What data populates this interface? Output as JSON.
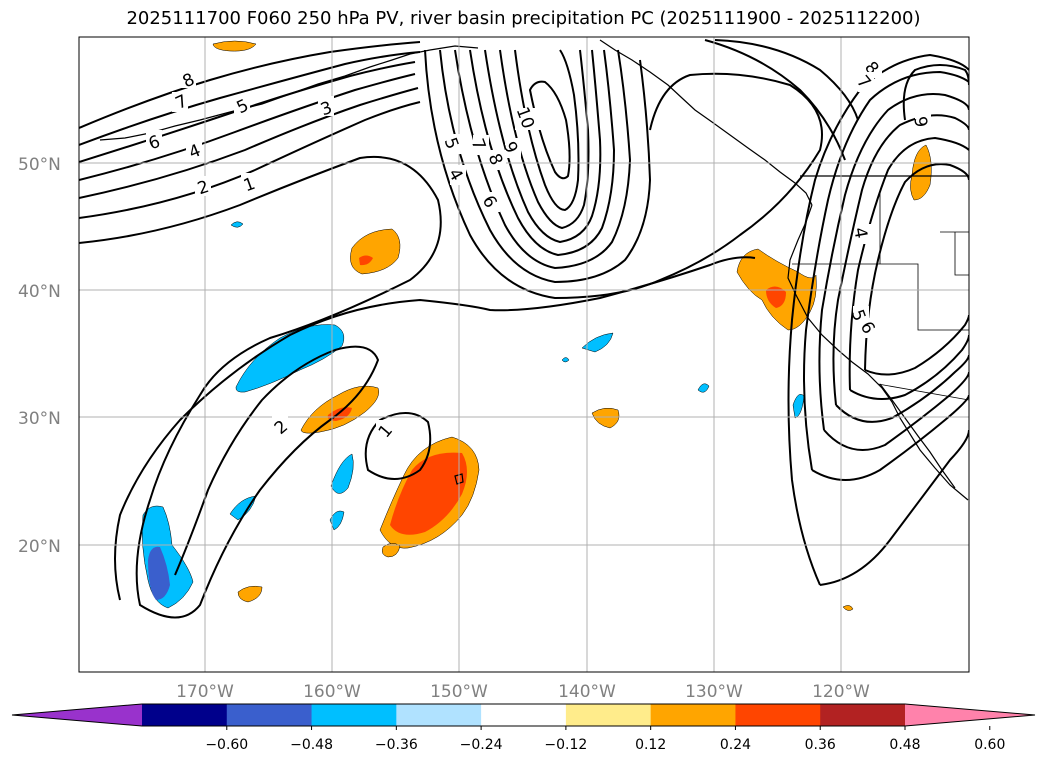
{
  "title": "2025111700 F060 250 hPa PV, river basin precipitation PC (2025111900 - 2025112200)",
  "latitude_labels": [
    "50°N",
    "40°N",
    "30°N",
    "20°N"
  ],
  "longitude_labels": [
    "170°W",
    "160°W",
    "150°W",
    "140°W",
    "130°W",
    "120°W"
  ],
  "contour_labels": [
    "8",
    "7",
    "6",
    "5",
    "4",
    "3",
    "2",
    "1",
    "10",
    "9",
    "8",
    "7",
    "6",
    "5",
    "4",
    "2",
    "1",
    "8",
    "7",
    "9",
    "4",
    "5",
    "6"
  ],
  "colorbar": {
    "colors": [
      "#9932cc",
      "#00008b",
      "#3a5fcd",
      "#00bfff",
      "#b0e2ff",
      "#ffffff",
      "#ffec8b",
      "#ffa500",
      "#ff4500",
      "#b22222",
      "#ff82ab"
    ],
    "tick_labels": [
      "−0.60",
      "−0.48",
      "−0.36",
      "−0.24",
      "−0.12",
      "0.12",
      "0.24",
      "0.36",
      "0.48",
      "0.60"
    ]
  },
  "colors": {
    "positive_pc": "#ffa500",
    "strong_positive_pc": "#ff4500",
    "negative_pc": "#00bfff",
    "strong_negative_pc": "#3a5fcd",
    "gridline": "#b0b0b0"
  }
}
